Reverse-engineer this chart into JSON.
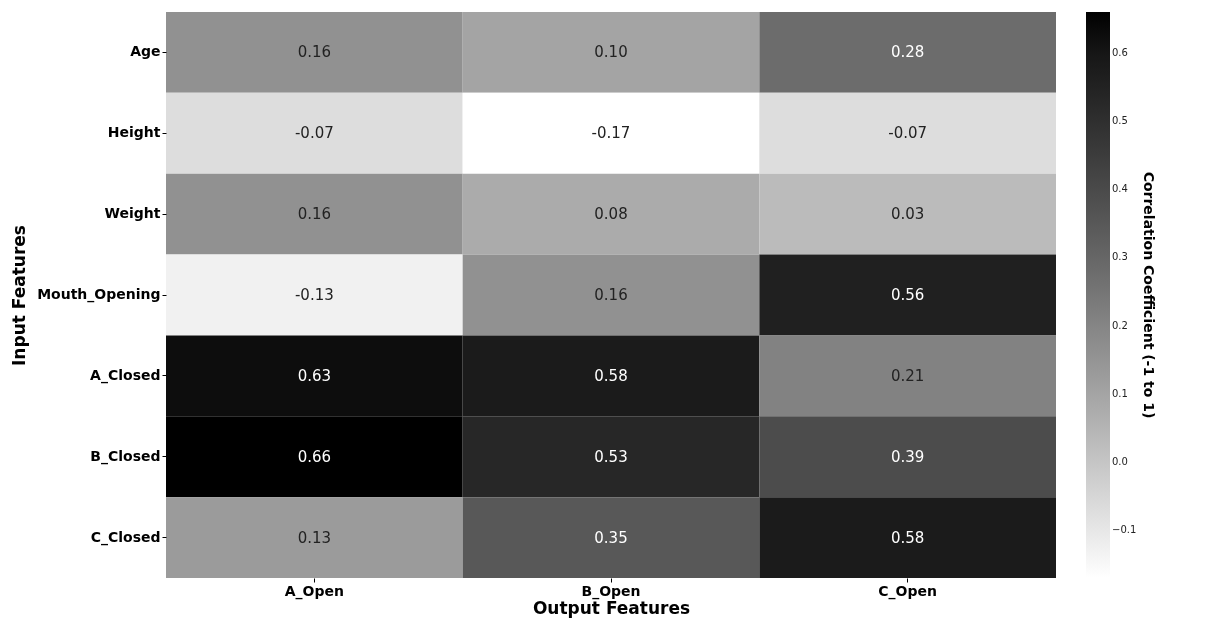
{
  "chart_data": {
    "type": "heatmap",
    "xlabel": "Output Features",
    "ylabel": "Input Features",
    "clabel": "Correlation Coefficient (-1 to 1)",
    "categories": [
      "A_Open",
      "B_Open",
      "C_Open"
    ],
    "y_categories": [
      "Age",
      "Height",
      "Weight",
      "Mouth_Opening",
      "A_Closed",
      "B_Closed",
      "C_Closed"
    ],
    "cells": [
      [
        0.16,
        0.1,
        0.28
      ],
      [
        -0.07,
        -0.17,
        -0.07
      ],
      [
        0.16,
        0.08,
        0.03
      ],
      [
        -0.13,
        0.16,
        0.56
      ],
      [
        0.63,
        0.58,
        0.21
      ],
      [
        0.66,
        0.53,
        0.39
      ],
      [
        0.13,
        0.35,
        0.58
      ]
    ],
    "cell_labels": [
      [
        "0.16",
        "0.10",
        "0.28"
      ],
      [
        "-0.07",
        "-0.17",
        "-0.07"
      ],
      [
        "0.16",
        "0.08",
        "0.03"
      ],
      [
        "-0.13",
        "0.16",
        "0.56"
      ],
      [
        "0.63",
        "0.58",
        "0.21"
      ],
      [
        "0.66",
        "0.53",
        "0.39"
      ],
      [
        "0.13",
        "0.35",
        "0.58"
      ]
    ],
    "clim": [
      -0.17,
      0.66
    ],
    "cticks": [
      {
        "value": -0.1,
        "label": "−0.1"
      },
      {
        "value": 0,
        "label": "0.0"
      },
      0.1,
      0.2,
      0.3,
      0.4,
      0.5,
      0.6
    ]
  }
}
